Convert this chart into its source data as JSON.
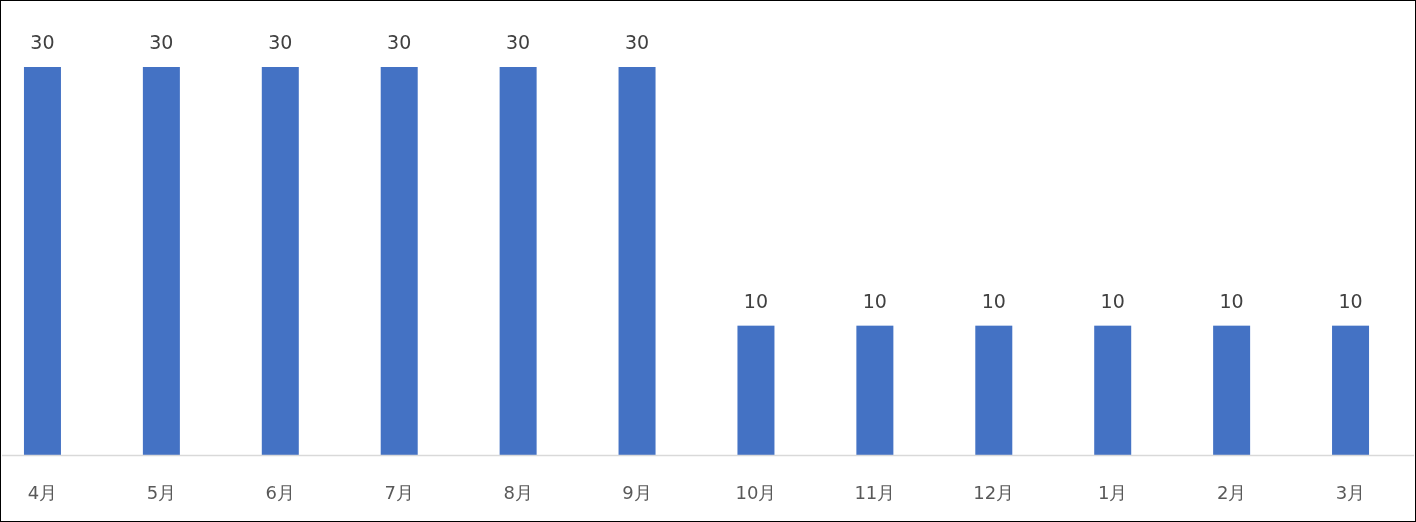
{
  "chart_data": {
    "type": "bar",
    "categories": [
      "4月",
      "5月",
      "6月",
      "7月",
      "8月",
      "9月",
      "10月",
      "11月",
      "12月",
      "1月",
      "2月",
      "3月"
    ],
    "values": [
      30,
      30,
      30,
      30,
      30,
      30,
      10,
      10,
      10,
      10,
      10,
      10
    ],
    "color": "#4472c4",
    "data_labels": true,
    "grid": false,
    "legend": false
  }
}
